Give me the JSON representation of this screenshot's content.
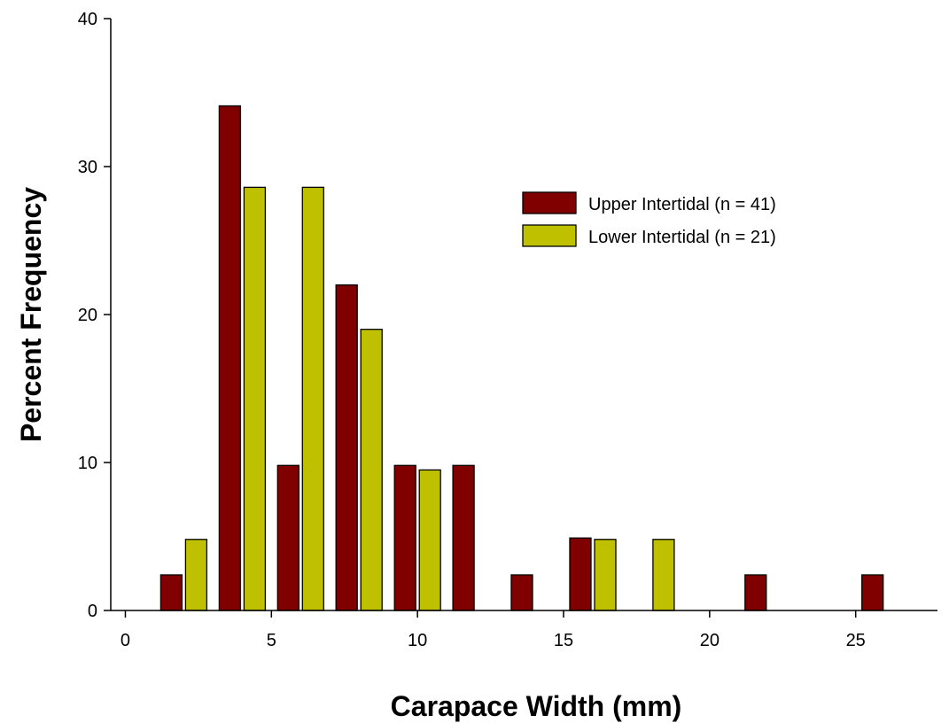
{
  "chart_data": {
    "type": "bar",
    "title": "",
    "xlabel": "Carapace Width (mm)",
    "ylabel": "Percent Frequency",
    "xlim": [
      -0.5,
      27.8
    ],
    "ylim": [
      0,
      40
    ],
    "xticks": [
      "0",
      "5",
      "10",
      "15",
      "20",
      "25"
    ],
    "yticks": [
      "0",
      "10",
      "20",
      "30",
      "40"
    ],
    "grid": false,
    "legend_position": "top-right",
    "series": [
      {
        "name": "Upper Intertidal (n = 41)",
        "color": "#800000",
        "points": [
          {
            "x": 2,
            "y": 2.4
          },
          {
            "x": 4,
            "y": 34.1
          },
          {
            "x": 6,
            "y": 9.8
          },
          {
            "x": 8,
            "y": 22.0
          },
          {
            "x": 10,
            "y": 9.8
          },
          {
            "x": 12,
            "y": 9.8
          },
          {
            "x": 14,
            "y": 2.4
          },
          {
            "x": 16,
            "y": 4.9
          },
          {
            "x": 22,
            "y": 2.4
          },
          {
            "x": 26,
            "y": 2.4
          }
        ]
      },
      {
        "name": "Lower Intertidal (n = 21)",
        "color": "#BFC000",
        "points": [
          {
            "x": 2,
            "y": 4.8
          },
          {
            "x": 4,
            "y": 28.6
          },
          {
            "x": 6,
            "y": 28.6
          },
          {
            "x": 8,
            "y": 19.0
          },
          {
            "x": 10,
            "y": 9.5
          },
          {
            "x": 16,
            "y": 4.8
          },
          {
            "x": 18,
            "y": 4.8
          }
        ]
      }
    ]
  }
}
